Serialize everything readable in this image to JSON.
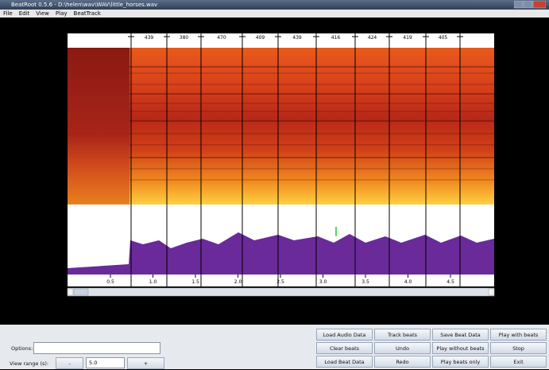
{
  "window": {
    "title": "BeatRoot 0.5.6 - D:\\helen\\wav\\WAV\\little_horses.wav"
  },
  "menu": [
    "File",
    "Edit",
    "View",
    "Play",
    "BeatTrack"
  ],
  "beat_intervals": [
    "439",
    "380",
    "470",
    "409",
    "439",
    "416",
    "424",
    "419",
    "405"
  ],
  "time_ticks": [
    "0.5",
    "1.0",
    "1.5",
    "2.0",
    "2.5",
    "3.0",
    "3.5",
    "4.0",
    "4.5"
  ],
  "controls": {
    "options_label": "Options:",
    "view_range_label": "View range (s):",
    "minus": "-",
    "view_range_value": "5.0",
    "plus": "+"
  },
  "buttons": [
    [
      "Load Audio Data",
      "Track beats",
      "Save Beat Data",
      "Play with beats"
    ],
    [
      "Clear beats",
      "Undo",
      "Play without beats",
      "Stop"
    ],
    [
      "Load Beat Data",
      "Redo",
      "Play beats only",
      "Exit"
    ]
  ]
}
